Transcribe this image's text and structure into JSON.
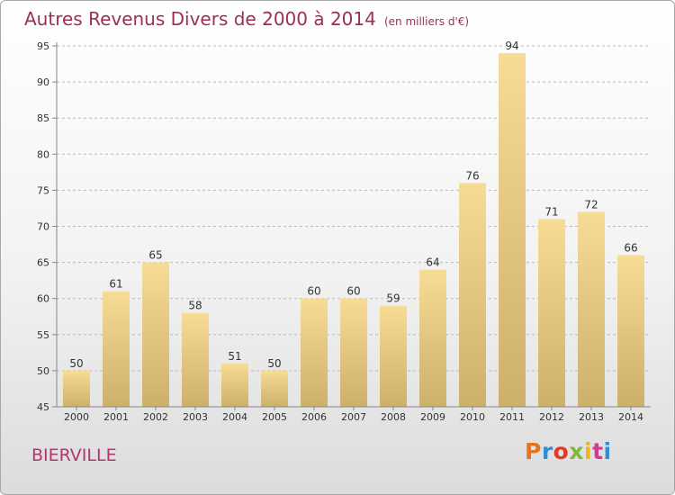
{
  "header": {
    "title": "Autres Revenus Divers de 2000 à 2014",
    "unit": "(en milliers d'€)"
  },
  "footer": {
    "commune": "BIERVILLE",
    "logo": "Proxiti",
    "logo_colors": [
      "#e8731f",
      "#2d8fd8",
      "#e23a2a",
      "#7fb93a",
      "#f2b31a",
      "#d23a8f",
      "#2d8fd8"
    ]
  },
  "colors": {
    "title": "#9b2f55",
    "bar_light": "#f7dc95",
    "bar_dark": "#cdb06a",
    "axis": "#888888",
    "grid": "#bbbbbb"
  },
  "chart_data": {
    "type": "bar",
    "title": "Autres Revenus Divers de 2000 à 2014",
    "subtitle": "(en milliers d'€)",
    "xlabel": "",
    "ylabel": "",
    "categories": [
      "2000",
      "2001",
      "2002",
      "2003",
      "2004",
      "2005",
      "2006",
      "2007",
      "2008",
      "2009",
      "2010",
      "2011",
      "2012",
      "2013",
      "2014"
    ],
    "values": [
      50,
      61,
      65,
      58,
      51,
      50,
      60,
      60,
      59,
      64,
      76,
      94,
      71,
      72,
      66
    ],
    "ylim": [
      45,
      95
    ],
    "yticks": [
      45,
      50,
      55,
      60,
      65,
      70,
      75,
      80,
      85,
      90,
      95
    ],
    "grid": "horizontal dashed",
    "legend": "none"
  }
}
